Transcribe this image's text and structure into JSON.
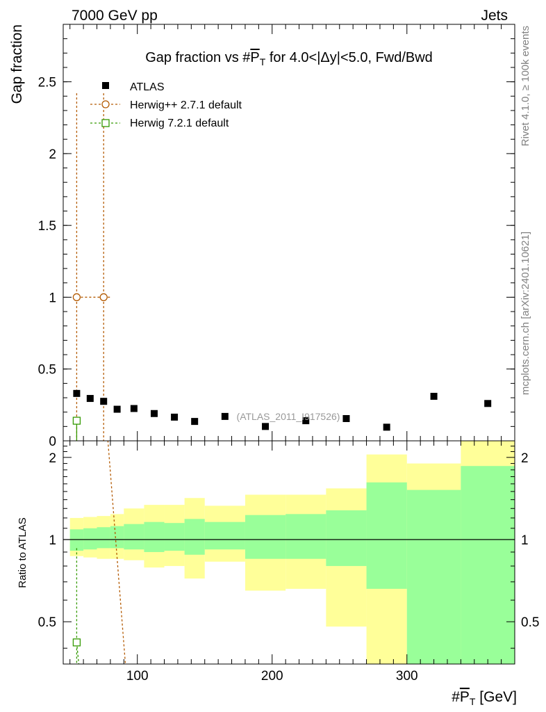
{
  "header": {
    "left": "7000 GeV pp",
    "right": "Jets"
  },
  "side_labels": {
    "rivet": "Rivet 4.1.0, ≥ 100k events",
    "mcplots": "mcplots.cern.ch [arXiv:2401.10621]"
  },
  "colors": {
    "herwigpp": "#b35900",
    "herwig7": "#339900",
    "band_inner": "#99ff99",
    "band_outer": "#ffff99"
  },
  "chart_data": {
    "type": "scatter",
    "title": "Gap fraction vs #P̅T for 4.0<|Δy|<5.0, Fwd/Bwd",
    "title_parts": {
      "pre": "Gap fraction vs #",
      "p": "P",
      "t": "T",
      "post": " for 4.0<|Δy|<5.0, Fwd/Bwd"
    },
    "xlabel": "#P̅T [GeV]",
    "xlabel_parts": {
      "pre": "#",
      "p": "P",
      "t": "T",
      "post": " [GeV]"
    },
    "ylabel": "Gap fraction",
    "ratio_ylabel": "Ratio to ATLAS",
    "watermark": "(ATLAS_2011_I917526)",
    "xlim": [
      45,
      380
    ],
    "ylim": [
      0,
      2.9
    ],
    "ratio_ylim": [
      0.35,
      2.3
    ],
    "main_ticks": {
      "values": [
        0,
        0.5,
        1,
        1.5,
        2,
        2.5
      ],
      "labels": [
        "0",
        "0.5",
        "1",
        "1.5",
        "2",
        "2.5"
      ]
    },
    "ratio_ticks": {
      "values": [
        0.5,
        1,
        2
      ],
      "labels": [
        "0.5",
        "1",
        "2"
      ]
    },
    "x_ticks": {
      "values": [
        100,
        200,
        300
      ],
      "labels": [
        "100",
        "200",
        "300"
      ]
    },
    "series": [
      {
        "name": "ATLAS",
        "marker": "square-filled",
        "x": [
          55,
          65,
          75,
          85,
          97.5,
          112.5,
          127.5,
          142.5,
          165,
          195,
          225,
          255,
          285,
          320,
          360
        ],
        "values": [
          0.33,
          0.295,
          0.275,
          0.22,
          0.225,
          0.19,
          0.165,
          0.135,
          0.17,
          0.1,
          0.14,
          0.155,
          0.095,
          0.31,
          0.26
        ]
      },
      {
        "name": "Herwig++ 2.7.1 default",
        "marker": "circle-open",
        "x": [
          55,
          75
        ],
        "values": [
          1.0,
          1.0
        ],
        "error_up": [
          1.42,
          1.42
        ],
        "error_down": [
          1.0,
          1.0
        ]
      },
      {
        "name": "Herwig 7.2.1 default",
        "marker": "square-open",
        "x": [
          55
        ],
        "values": [
          0.14
        ],
        "error_up": [
          0.0
        ],
        "error_down": [
          0.14
        ]
      }
    ],
    "ratio_bands": {
      "edges": [
        50,
        60,
        70,
        80,
        90,
        105,
        120,
        135,
        150,
        180,
        210,
        240,
        270,
        300,
        340,
        380
      ],
      "inner_low": [
        0.91,
        0.92,
        0.93,
        0.93,
        0.92,
        0.9,
        0.91,
        0.88,
        0.92,
        0.85,
        0.85,
        0.8,
        0.66,
        0.35,
        0.35
      ],
      "inner_high": [
        1.09,
        1.1,
        1.11,
        1.12,
        1.14,
        1.16,
        1.15,
        1.19,
        1.16,
        1.23,
        1.24,
        1.28,
        1.62,
        1.52,
        1.86
      ],
      "outer_low": [
        0.87,
        0.86,
        0.85,
        0.85,
        0.84,
        0.79,
        0.8,
        0.72,
        0.83,
        0.65,
        0.66,
        0.48,
        0.35,
        0.35,
        0.35
      ],
      "outer_high": [
        1.2,
        1.21,
        1.22,
        1.24,
        1.3,
        1.34,
        1.34,
        1.42,
        1.33,
        1.46,
        1.46,
        1.54,
        2.05,
        1.9,
        2.3
      ]
    },
    "ratio_series": [
      {
        "name": "Herwig++ 2.7.1 default",
        "x": [
          75,
          95
        ],
        "values": [
          3.64,
          0.2
        ]
      },
      {
        "name": "Herwig 7.2.1 default",
        "x": [
          55
        ],
        "values": [
          0.42
        ],
        "error_up": [
          0.51
        ],
        "error_down": [
          0.07
        ]
      }
    ]
  }
}
